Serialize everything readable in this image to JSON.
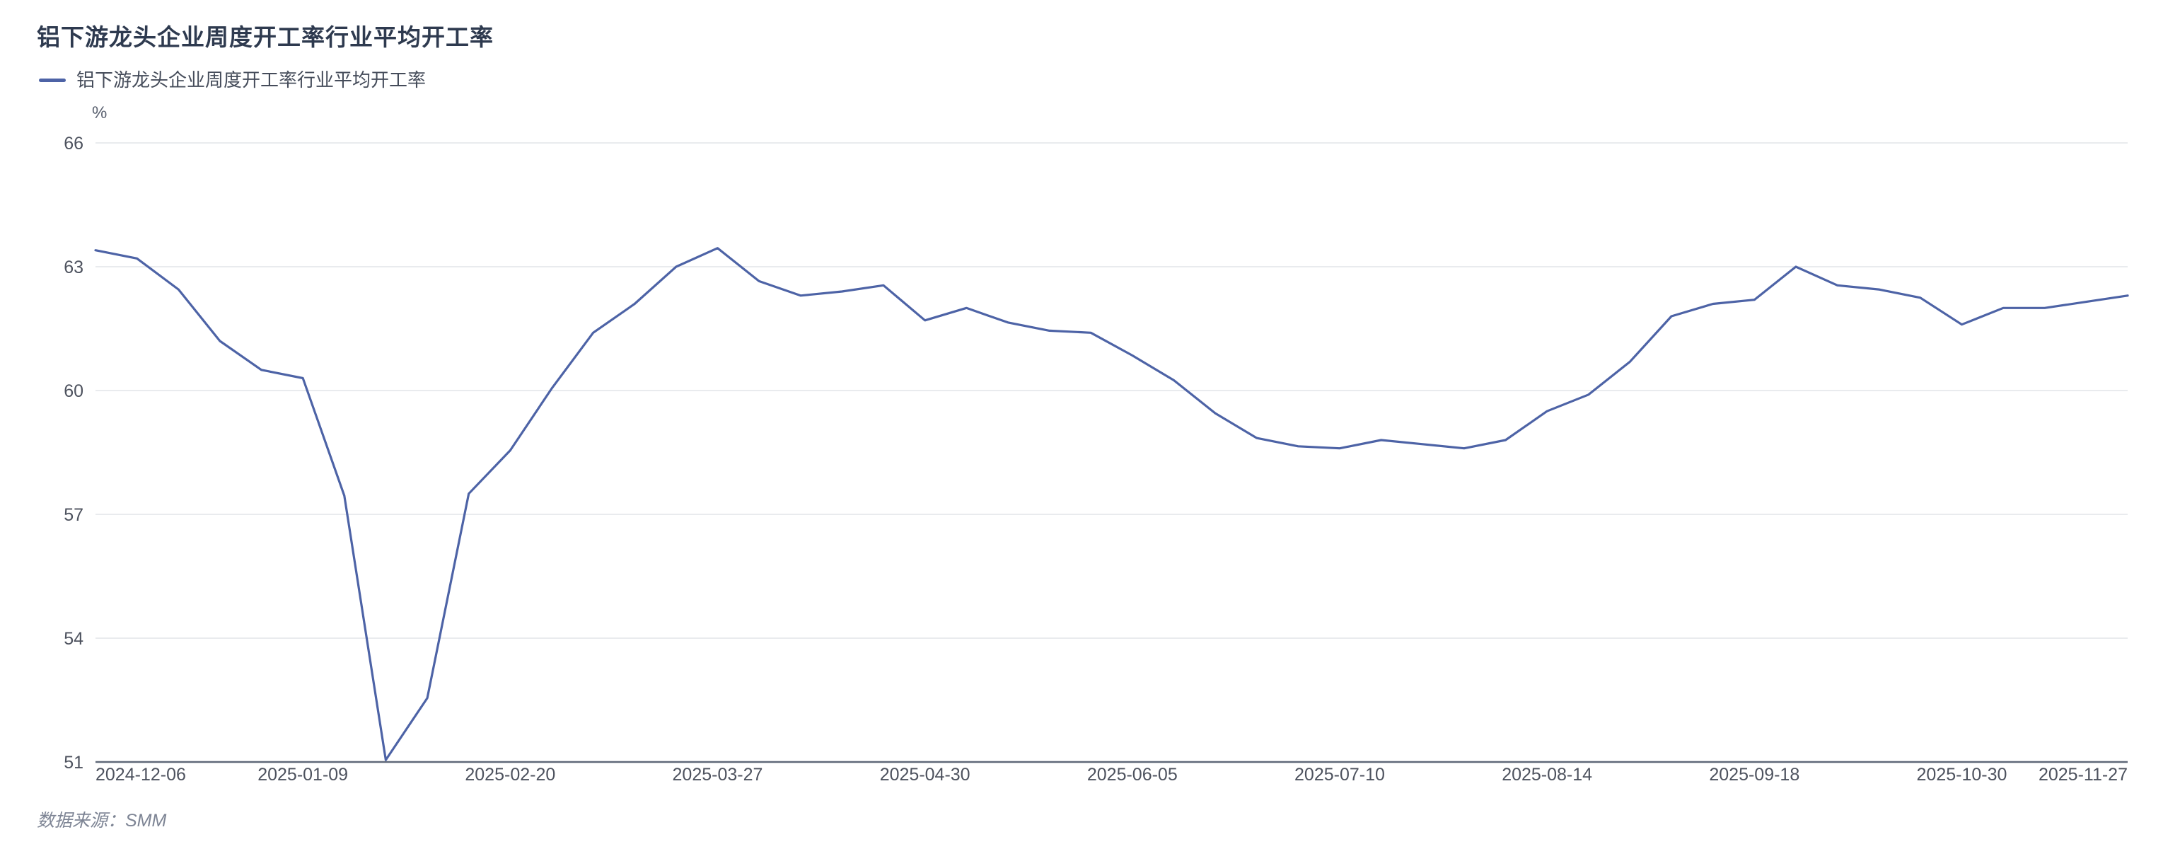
{
  "header": {
    "title": "铝下游龙头企业周度开工率行业平均开工率"
  },
  "legend": {
    "label": "铝下游龙头企业周度开工率行业平均开工率"
  },
  "footer": {
    "source": "数据来源：SMM"
  },
  "colors": {
    "line": "#4d63a6",
    "grid": "#e9ebee",
    "axis": "#5f6878",
    "tick_text": "#4d525e",
    "title_text": "#2e3a4f"
  },
  "chart_data": {
    "type": "line",
    "title": "铝下游龙头企业周度开工率行业平均开工率",
    "legend_entries": [
      "铝下游龙头企业周度开工率行业平均开工率"
    ],
    "xlabel": "",
    "ylabel": "%",
    "unit": "%",
    "ylim": [
      51,
      66
    ],
    "yticks": [
      51,
      54,
      57,
      60,
      63,
      66
    ],
    "grid": true,
    "legend_position": "top-left",
    "x": [
      "2024-12-06",
      "2024-12-13",
      "2024-12-20",
      "2024-12-27",
      "2025-01-03",
      "2025-01-09",
      "2025-01-16",
      "2025-01-23",
      "2025-02-06",
      "2025-02-13",
      "2025-02-20",
      "2025-02-27",
      "2025-03-06",
      "2025-03-13",
      "2025-03-20",
      "2025-03-27",
      "2025-04-03",
      "2025-04-10",
      "2025-04-17",
      "2025-04-24",
      "2025-04-30",
      "2025-05-08",
      "2025-05-15",
      "2025-05-22",
      "2025-05-29",
      "2025-06-05",
      "2025-06-12",
      "2025-06-19",
      "2025-06-26",
      "2025-07-03",
      "2025-07-10",
      "2025-07-17",
      "2025-07-24",
      "2025-07-31",
      "2025-08-07",
      "2025-08-14",
      "2025-08-21",
      "2025-08-28",
      "2025-09-04",
      "2025-09-11",
      "2025-09-18",
      "2025-09-25",
      "2025-10-09",
      "2025-10-16",
      "2025-10-23",
      "2025-10-30",
      "2025-11-06",
      "2025-11-13",
      "2025-11-20",
      "2025-11-27"
    ],
    "series": [
      {
        "name": "铝下游龙头企业周度开工率行业平均开工率",
        "values": [
          63.4,
          63.2,
          62.45,
          61.2,
          60.5,
          60.3,
          57.45,
          51.05,
          52.55,
          57.5,
          58.55,
          60.05,
          61.4,
          62.1,
          63.0,
          63.45,
          62.65,
          62.3,
          62.4,
          62.55,
          61.7,
          62.0,
          61.65,
          61.45,
          61.4,
          60.85,
          60.25,
          59.45,
          58.85,
          58.65,
          58.6,
          58.8,
          58.7,
          58.6,
          58.8,
          59.5,
          59.9,
          60.7,
          61.8,
          62.1,
          62.2,
          63.0,
          62.55,
          62.45,
          62.25,
          61.6,
          62.0,
          62.0,
          62.15,
          62.3
        ]
      }
    ],
    "x_label_indices": [
      0,
      5,
      10,
      15,
      20,
      25,
      30,
      35,
      40,
      45,
      49
    ],
    "visible_x_labels": [
      "2024-12-06",
      "2025-01-09",
      "2025-02-20",
      "2025-03-27",
      "2025-04-30",
      "2025-06-05",
      "2025-07-10",
      "2025-08-14",
      "2025-09-18",
      "2025-10-30",
      "2025-11-27"
    ]
  }
}
